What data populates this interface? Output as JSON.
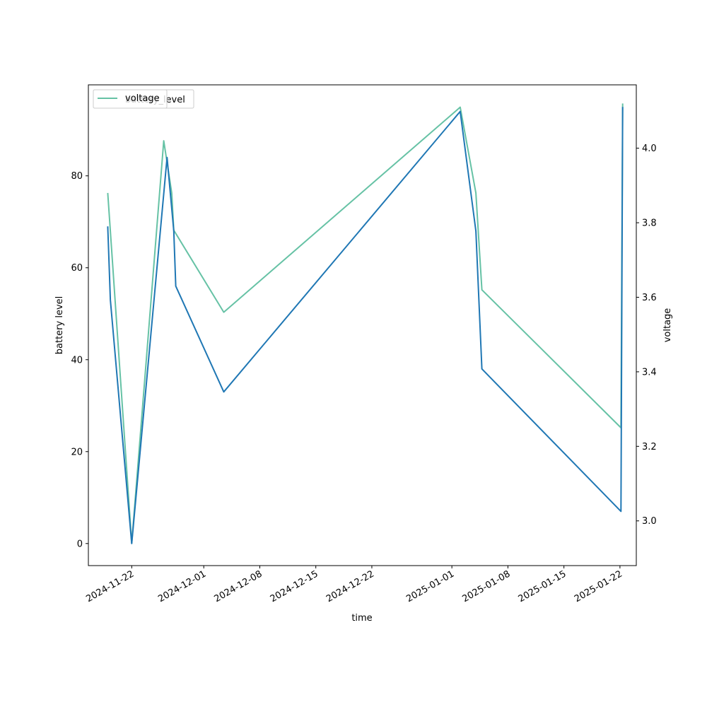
{
  "chart_data": {
    "type": "line",
    "xlabel": "time",
    "ylabel": "battery level",
    "ylabel_right": "voltage",
    "x_ticks": [
      "2024-11-22",
      "2024-12-01",
      "2024-12-08",
      "2024-12-15",
      "2024-12-22",
      "2025-01-01",
      "2025-01-08",
      "2025-01-15",
      "2025-01-22"
    ],
    "x_range": [
      "2024-11-16T14:00",
      "2025-01-24T01:00"
    ],
    "y_left_ticks": [
      0,
      20,
      40,
      60,
      80
    ],
    "y_left_range": [
      -4.8,
      99.8
    ],
    "y_right_ticks": [
      3.0,
      3.2,
      3.4,
      3.6,
      3.8,
      4.0
    ],
    "y_right_range": [
      2.88,
      4.17
    ],
    "legend_placement": "upper-left",
    "grid": false,
    "series": [
      {
        "name": "battery_level",
        "axis": "left",
        "color": "#1f77b4",
        "points": [
          [
            "2024-11-19T00:00",
            69
          ],
          [
            "2024-11-19T08:00",
            53
          ],
          [
            "2024-11-22T00:00",
            0
          ],
          [
            "2024-11-26T10:00",
            84
          ],
          [
            "2024-11-27T06:00",
            68
          ],
          [
            "2024-11-27T12:00",
            56
          ],
          [
            "2024-12-03T12:00",
            33
          ],
          [
            "2025-01-02T01:00",
            94
          ],
          [
            "2025-01-04T00:00",
            68
          ],
          [
            "2025-01-04T18:00",
            38
          ],
          [
            "2025-01-22T03:00",
            7
          ],
          [
            "2025-01-22T08:00",
            95
          ]
        ]
      },
      {
        "name": "voltage",
        "axis": "right",
        "color": "#66c2a5",
        "points": [
          [
            "2024-11-19T00:00",
            3.88
          ],
          [
            "2024-11-22T00:00",
            2.94
          ],
          [
            "2024-11-26T00:00",
            4.02
          ],
          [
            "2024-11-27T00:00",
            3.88
          ],
          [
            "2024-11-27T06:00",
            3.78
          ],
          [
            "2024-12-03T12:00",
            3.56
          ],
          [
            "2025-01-02T01:00",
            4.11
          ],
          [
            "2025-01-04T00:00",
            3.88
          ],
          [
            "2025-01-04T18:00",
            3.62
          ],
          [
            "2025-01-22T03:00",
            3.25
          ],
          [
            "2025-01-22T08:00",
            4.12
          ]
        ]
      }
    ],
    "legend": {
      "entries": [
        "voltage"
      ],
      "overlapped_text": "battery_level"
    }
  }
}
